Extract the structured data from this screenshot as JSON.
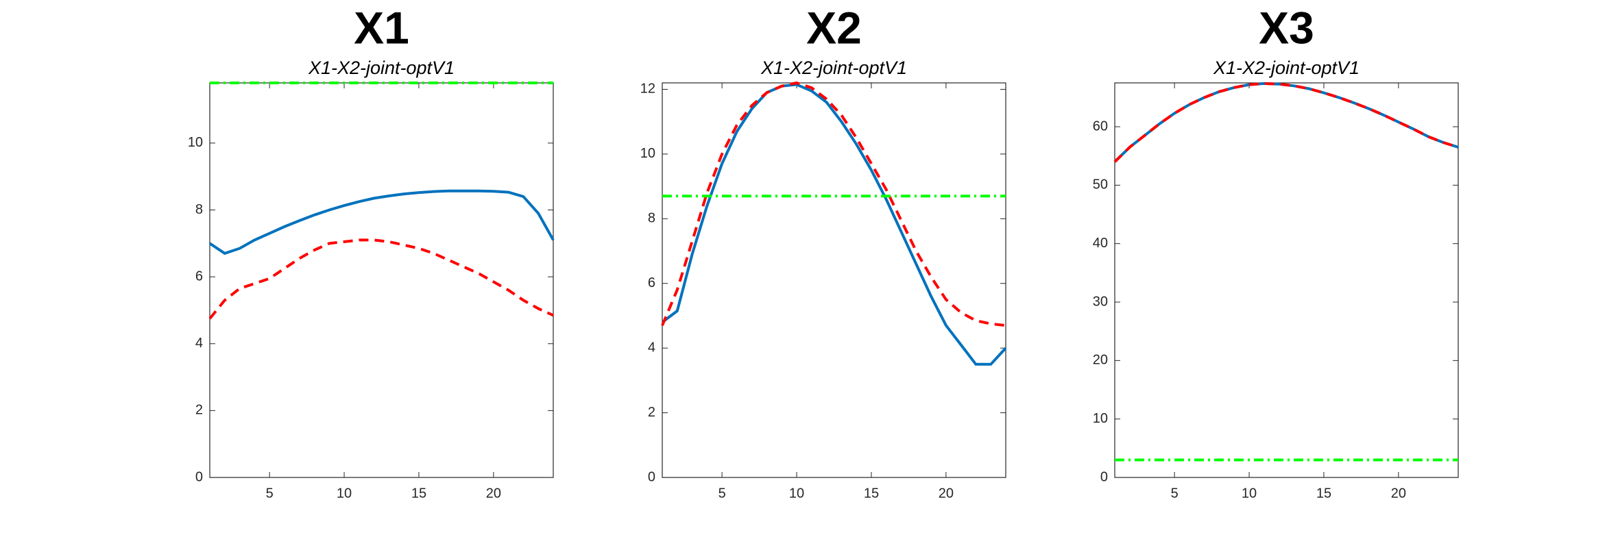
{
  "chart_data": [
    {
      "type": "line",
      "title": "X1",
      "subtitle": "X1-X2-joint-optV1",
      "x": [
        1,
        2,
        3,
        4,
        5,
        6,
        7,
        8,
        9,
        10,
        11,
        12,
        13,
        14,
        15,
        16,
        17,
        18,
        19,
        20,
        21,
        22,
        23,
        24
      ],
      "xlim": [
        1,
        24
      ],
      "xticks": [
        5,
        10,
        15,
        20
      ],
      "ylim": [
        0,
        11.8
      ],
      "yticks": [
        0,
        2,
        4,
        6,
        8,
        10
      ],
      "series": [
        {
          "color": "#0072bd",
          "style": "solid",
          "values": [
            7.0,
            6.7,
            6.85,
            7.1,
            7.3,
            7.5,
            7.68,
            7.85,
            8.0,
            8.13,
            8.25,
            8.35,
            8.42,
            8.48,
            8.52,
            8.55,
            8.57,
            8.57,
            8.57,
            8.56,
            8.53,
            8.4,
            7.9,
            7.1
          ]
        },
        {
          "color": "#ff0000",
          "style": "dashed",
          "values": [
            4.75,
            5.3,
            5.65,
            5.8,
            5.95,
            6.25,
            6.55,
            6.8,
            7.0,
            7.05,
            7.1,
            7.1,
            7.05,
            6.95,
            6.85,
            6.7,
            6.5,
            6.3,
            6.1,
            5.85,
            5.6,
            5.3,
            5.05,
            4.85
          ]
        },
        {
          "color": "#00ff00",
          "style": "dashdot",
          "values": [
            11.8,
            11.8,
            11.8,
            11.8,
            11.8,
            11.8,
            11.8,
            11.8,
            11.8,
            11.8,
            11.8,
            11.8,
            11.8,
            11.8,
            11.8,
            11.8,
            11.8,
            11.8,
            11.8,
            11.8,
            11.8,
            11.8,
            11.8,
            11.8
          ]
        }
      ]
    },
    {
      "type": "line",
      "title": "X2",
      "subtitle": "X1-X2-joint-optV1",
      "x": [
        1,
        2,
        3,
        4,
        5,
        6,
        7,
        8,
        9,
        10,
        11,
        12,
        13,
        14,
        15,
        16,
        17,
        18,
        19,
        20,
        21,
        22,
        23,
        24
      ],
      "xlim": [
        1,
        24
      ],
      "xticks": [
        5,
        10,
        15,
        20
      ],
      "ylim": [
        0,
        12.2
      ],
      "yticks": [
        0,
        2,
        4,
        6,
        8,
        10,
        12
      ],
      "series": [
        {
          "color": "#0072bd",
          "style": "solid",
          "values": [
            4.8,
            5.15,
            6.9,
            8.4,
            9.7,
            10.7,
            11.4,
            11.9,
            12.1,
            12.15,
            11.95,
            11.6,
            11.0,
            10.3,
            9.5,
            8.6,
            7.6,
            6.6,
            5.6,
            4.7,
            4.1,
            3.5,
            3.5,
            4.0
          ]
        },
        {
          "color": "#ff0000",
          "style": "dashed",
          "values": [
            4.7,
            5.8,
            7.3,
            8.8,
            10.0,
            10.9,
            11.5,
            11.9,
            12.1,
            12.2,
            12.05,
            11.7,
            11.2,
            10.5,
            9.7,
            8.9,
            7.95,
            7.0,
            6.2,
            5.5,
            5.1,
            4.85,
            4.75,
            4.7
          ]
        },
        {
          "color": "#00ff00",
          "style": "dashdot",
          "values": [
            8.7,
            8.7,
            8.7,
            8.7,
            8.7,
            8.7,
            8.7,
            8.7,
            8.7,
            8.7,
            8.7,
            8.7,
            8.7,
            8.7,
            8.7,
            8.7,
            8.7,
            8.7,
            8.7,
            8.7,
            8.7,
            8.7,
            8.7,
            8.7
          ]
        }
      ]
    },
    {
      "type": "line",
      "title": "X3",
      "subtitle": "X1-X2-joint-optV1",
      "x": [
        1,
        2,
        3,
        4,
        5,
        6,
        7,
        8,
        9,
        10,
        11,
        12,
        13,
        14,
        15,
        16,
        17,
        18,
        19,
        20,
        21,
        22,
        23,
        24
      ],
      "xlim": [
        1,
        24
      ],
      "xticks": [
        5,
        10,
        15,
        20
      ],
      "ylim": [
        0,
        67.5
      ],
      "yticks": [
        0,
        10,
        20,
        30,
        40,
        50,
        60
      ],
      "series": [
        {
          "color": "#0072bd",
          "style": "solid",
          "values": [
            54,
            56.5,
            58.5,
            60.5,
            62.3,
            63.8,
            65,
            66,
            66.7,
            67.2,
            67.4,
            67.3,
            67,
            66.5,
            65.8,
            65,
            64.1,
            63.1,
            62,
            60.8,
            59.6,
            58.3,
            57.3,
            56.5
          ]
        },
        {
          "color": "#ff0000",
          "style": "dashed",
          "values": [
            54,
            56.5,
            58.5,
            60.5,
            62.3,
            63.8,
            65,
            66,
            66.7,
            67.2,
            67.4,
            67.3,
            67,
            66.5,
            65.8,
            65,
            64.1,
            63.1,
            62,
            60.8,
            59.6,
            58.3,
            57.3,
            56.5
          ]
        },
        {
          "color": "#00ff00",
          "style": "dashdot",
          "values": [
            3,
            3,
            3,
            3,
            3,
            3,
            3,
            3,
            3,
            3,
            3,
            3,
            3,
            3,
            3,
            3,
            3,
            3,
            3,
            3,
            3,
            3,
            3,
            3
          ]
        }
      ]
    }
  ]
}
